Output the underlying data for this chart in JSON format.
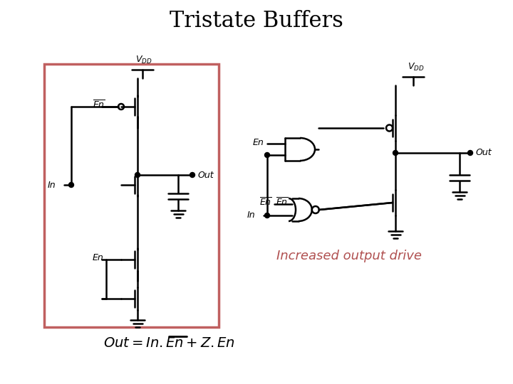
{
  "title": "Tristate Buffers",
  "title_fontsize": 22,
  "title_font": "serif",
  "increased_output_drive_text": "Increased output drive",
  "increased_output_drive_color": "#b05050",
  "formula_text": "Out = In.En + Z.En",
  "formula_fontsize": 15,
  "box_color": "#c06060",
  "background_color": "#ffffff",
  "line_color": "#000000",
  "lw": 1.8
}
